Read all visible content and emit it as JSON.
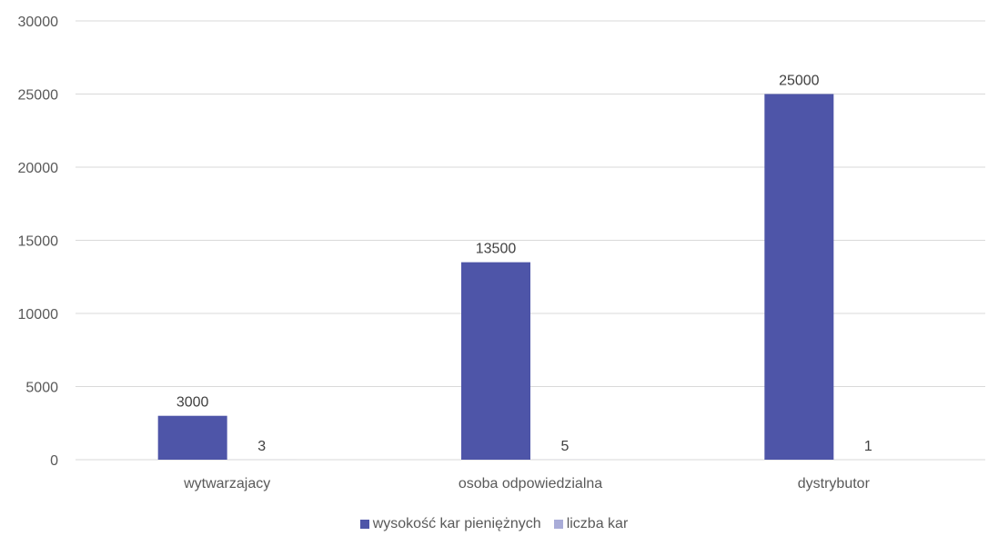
{
  "chart_data": {
    "type": "bar",
    "title": "",
    "xlabel": "",
    "ylabel": "",
    "categories": [
      "wytwarzajacy",
      "osoba odpowiedzialna",
      "dystrybutor"
    ],
    "series": [
      {
        "name": "wysokość kar pieniężnych",
        "values": [
          3000,
          13500,
          25000
        ],
        "color": "#4e55a8"
      },
      {
        "name": "liczba kar",
        "values": [
          3,
          5,
          1
        ],
        "color": "#a9acd8"
      }
    ],
    "ylim": [
      0,
      30000
    ],
    "yticks": [
      "0",
      "5000",
      "10000",
      "15000",
      "20000",
      "25000",
      "30000"
    ],
    "grid": true,
    "legend_position": "bottom",
    "gridline_color": "#d9d9d9"
  }
}
